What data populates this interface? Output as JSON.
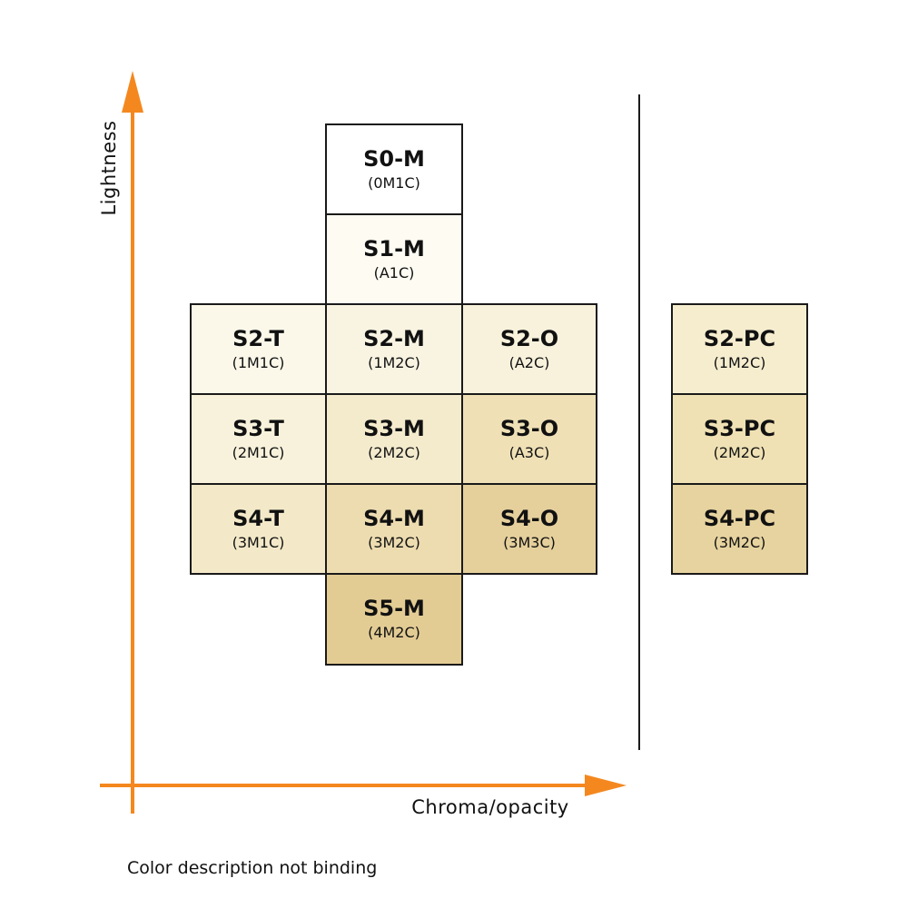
{
  "axes": {
    "y_label": "Lightness",
    "x_label": "Chroma/opacity",
    "color": "#f4881f"
  },
  "footnote": "Color description not binding",
  "cells": [
    {
      "code": "S0-M",
      "sub": "(0M1C)",
      "color": "#ffffff"
    },
    {
      "code": "S1-M",
      "sub": "(A1C)",
      "color": "#fdfbf2"
    },
    {
      "code": "S2-T",
      "sub": "(1M1C)",
      "color": "#fbf8ea"
    },
    {
      "code": "S2-M",
      "sub": "(1M2C)",
      "color": "#f9f4e2"
    },
    {
      "code": "S2-O",
      "sub": "(A2C)",
      "color": "#f8f2dc"
    },
    {
      "code": "S3-T",
      "sub": "(2M1C)",
      "color": "#f8f2dc"
    },
    {
      "code": "S3-M",
      "sub": "(2M2C)",
      "color": "#f4ebcd"
    },
    {
      "code": "S3-O",
      "sub": "(A3C)",
      "color": "#efe0b6"
    },
    {
      "code": "S4-T",
      "sub": "(3M1C)",
      "color": "#f3e9c8"
    },
    {
      "code": "S4-M",
      "sub": "(3M2C)",
      "color": "#eddcb0"
    },
    {
      "code": "S4-O",
      "sub": "(3M3C)",
      "color": "#e5d09c"
    },
    {
      "code": "S5-M",
      "sub": "(4M2C)",
      "color": "#e3cc94"
    },
    {
      "code": "S2-PC",
      "sub": "(1M2C)",
      "color": "#f6edcf"
    },
    {
      "code": "S3-PC",
      "sub": "(2M2C)",
      "color": "#efe1b4"
    },
    {
      "code": "S4-PC",
      "sub": "(3M2C)",
      "color": "#e7d39f"
    }
  ]
}
